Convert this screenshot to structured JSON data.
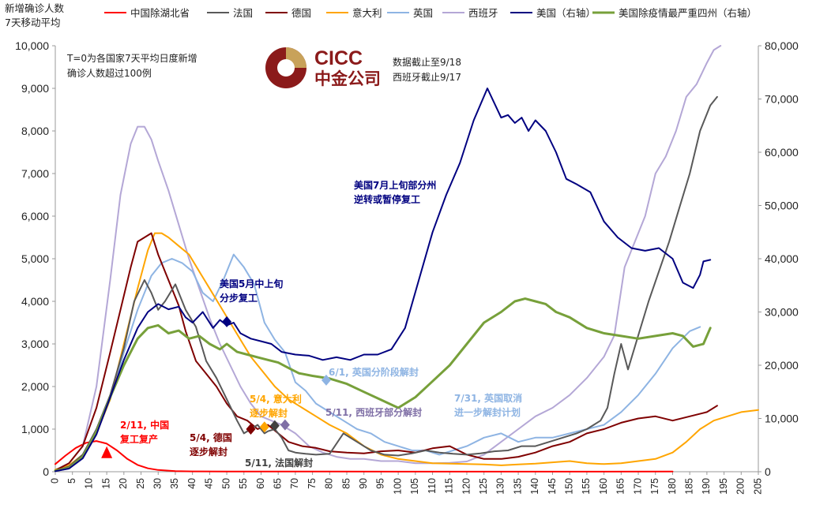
{
  "chart_data": {
    "type": "line",
    "ylabel": "新增确诊人数\n7天移动平均",
    "ylim": [
      0,
      10000
    ],
    "y2lim": [
      0,
      80000
    ],
    "xlim": [
      0,
      205
    ],
    "x_ticks": [
      0,
      5,
      10,
      15,
      20,
      25,
      30,
      35,
      40,
      45,
      50,
      55,
      60,
      65,
      70,
      75,
      80,
      85,
      90,
      95,
      100,
      105,
      110,
      115,
      120,
      125,
      130,
      135,
      140,
      145,
      150,
      155,
      160,
      165,
      170,
      175,
      180,
      185,
      190,
      195,
      200,
      205
    ],
    "y_ticks": [
      0,
      1000,
      2000,
      3000,
      4000,
      5000,
      6000,
      7000,
      8000,
      9000,
      10000
    ],
    "y_tick_labels": [
      "0",
      "1,000",
      "2,000",
      "3,000",
      "4,000",
      "5,000",
      "6,000",
      "7,000",
      "8,000",
      "9,000",
      "10,000"
    ],
    "y2_ticks": [
      0,
      10000,
      20000,
      30000,
      40000,
      50000,
      60000,
      70000,
      80000
    ],
    "y2_tick_labels": [
      "0",
      "10,000",
      "20,000",
      "30,000",
      "40,000",
      "50,000",
      "60,000",
      "70,000",
      "80,000"
    ],
    "grid": false,
    "legend_position": "top",
    "note": "T=0为各国家7天平均日度新增\n确诊人数超过100例",
    "data_note": "数据截止至9/18\n西班牙截止9/17",
    "logo": {
      "text_top": "CICC",
      "text_bottom": "中金公司",
      "brand_color": "#8b1a1a"
    },
    "series": [
      {
        "name": "中国除湖北省",
        "color": "#ff0000",
        "axis": "left",
        "width": 2,
        "x": [
          0,
          3,
          6,
          9,
          12,
          15,
          18,
          21,
          24,
          27,
          30,
          35,
          40,
          50,
          60,
          70,
          80,
          100,
          120,
          140,
          160,
          180
        ],
        "values": [
          180,
          380,
          560,
          680,
          720,
          660,
          500,
          300,
          160,
          80,
          40,
          15,
          8,
          5,
          4,
          3,
          3,
          2,
          2,
          2,
          2,
          3
        ]
      },
      {
        "name": "法国",
        "color": "#595959",
        "axis": "left",
        "width": 2,
        "x": [
          0,
          4,
          8,
          12,
          16,
          20,
          23,
          26,
          28,
          30,
          32,
          35,
          38,
          41,
          44,
          47,
          50,
          53,
          55,
          57,
          59,
          61,
          62,
          64,
          66,
          68,
          70,
          73,
          76,
          80,
          84,
          88,
          92,
          96,
          100,
          104,
          108,
          112,
          116,
          120,
          124,
          128,
          132,
          136,
          140,
          144,
          148,
          152,
          155,
          157,
          159,
          161,
          163,
          165,
          167,
          170,
          173,
          176,
          179,
          182,
          185,
          188,
          191,
          193
        ],
        "values": [
          20,
          120,
          400,
          1000,
          1800,
          2900,
          4000,
          4500,
          4200,
          3800,
          4000,
          4400,
          3800,
          3400,
          2600,
          2200,
          1700,
          1200,
          900,
          1000,
          1100,
          900,
          950,
          1000,
          800,
          500,
          450,
          420,
          400,
          420,
          900,
          700,
          500,
          400,
          380,
          430,
          500,
          450,
          420,
          400,
          430,
          480,
          500,
          600,
          600,
          700,
          800,
          900,
          1000,
          1100,
          1200,
          1500,
          2300,
          3000,
          2400,
          3200,
          4000,
          4700,
          5400,
          6200,
          7000,
          8000,
          8600,
          8800
        ]
      },
      {
        "name": "德国",
        "color": "#7f0000",
        "axis": "left",
        "width": 2,
        "x": [
          0,
          4,
          8,
          12,
          16,
          19,
          22,
          24,
          26,
          28,
          30,
          32,
          34,
          36,
          38,
          41,
          44,
          47,
          50,
          53,
          56,
          59,
          62,
          65,
          68,
          72,
          76,
          80,
          85,
          90,
          95,
          100,
          105,
          110,
          115,
          120,
          125,
          130,
          135,
          140,
          145,
          150,
          155,
          160,
          165,
          170,
          175,
          180,
          185,
          190,
          193
        ],
        "values": [
          30,
          200,
          600,
          1500,
          2800,
          3800,
          4800,
          5400,
          5500,
          5600,
          5100,
          4700,
          4300,
          3900,
          3300,
          2600,
          2300,
          2000,
          1600,
          1300,
          1200,
          1000,
          1100,
          900,
          700,
          600,
          560,
          480,
          450,
          430,
          480,
          500,
          450,
          550,
          600,
          400,
          300,
          300,
          350,
          450,
          600,
          700,
          900,
          1000,
          1150,
          1250,
          1300,
          1200,
          1300,
          1400,
          1550
        ]
      },
      {
        "name": "意大利",
        "color": "#ffa500",
        "axis": "left",
        "width": 2,
        "x": [
          0,
          4,
          8,
          12,
          16,
          20,
          24,
          27,
          29,
          31,
          33,
          36,
          39,
          42,
          45,
          48,
          51,
          54,
          57,
          60,
          64,
          68,
          72,
          76,
          80,
          85,
          90,
          95,
          100,
          105,
          110,
          115,
          120,
          125,
          130,
          135,
          140,
          145,
          150,
          155,
          160,
          165,
          170,
          175,
          180,
          184,
          188,
          192,
          196,
          200,
          205
        ],
        "values": [
          50,
          150,
          400,
          900,
          1700,
          3000,
          4300,
          5200,
          5600,
          5600,
          5500,
          5300,
          5100,
          4700,
          4300,
          3900,
          3500,
          3100,
          2700,
          2400,
          2000,
          1700,
          1500,
          1300,
          1100,
          900,
          600,
          400,
          300,
          250,
          200,
          190,
          180,
          170,
          150,
          170,
          190,
          220,
          250,
          200,
          180,
          200,
          250,
          300,
          450,
          700,
          1000,
          1200,
          1300,
          1400,
          1450
        ]
      },
      {
        "name": "英国",
        "color": "#8eb4e3",
        "axis": "left",
        "width": 2,
        "x": [
          0,
          4,
          8,
          12,
          16,
          20,
          24,
          28,
          31,
          34,
          37,
          40,
          43,
          46,
          49,
          52,
          55,
          58,
          61,
          64,
          67,
          70,
          73,
          76,
          80,
          84,
          88,
          92,
          96,
          100,
          104,
          108,
          112,
          116,
          120,
          125,
          130,
          135,
          140,
          145,
          150,
          155,
          160,
          165,
          170,
          175,
          180,
          185,
          188
        ],
        "values": [
          30,
          130,
          350,
          900,
          1700,
          2800,
          3800,
          4600,
          4900,
          5000,
          4900,
          4700,
          4200,
          4000,
          4500,
          5100,
          4800,
          4400,
          3500,
          3100,
          2800,
          2100,
          1900,
          1600,
          1400,
          1200,
          1000,
          900,
          700,
          600,
          500,
          500,
          400,
          500,
          600,
          800,
          900,
          700,
          800,
          800,
          900,
          1000,
          1100,
          1400,
          1800,
          2300,
          2900,
          3300,
          3400
        ]
      },
      {
        "name": "西班牙",
        "color": "#b4a7d6",
        "axis": "left",
        "width": 2,
        "x": [
          0,
          4,
          8,
          12,
          16,
          19,
          22,
          24,
          26,
          28,
          30,
          33,
          36,
          39,
          42,
          45,
          48,
          51,
          54,
          57,
          60,
          63,
          66,
          70,
          74,
          78,
          82,
          86,
          90,
          95,
          100,
          105,
          110,
          115,
          120,
          125,
          130,
          135,
          140,
          145,
          150,
          155,
          160,
          163,
          166,
          169,
          172,
          175,
          178,
          181,
          184,
          187,
          190,
          192,
          194
        ],
        "values": [
          40,
          200,
          600,
          2000,
          4500,
          6500,
          7700,
          8100,
          8100,
          7800,
          7300,
          6600,
          5800,
          5000,
          4300,
          3600,
          3000,
          2500,
          2000,
          1600,
          1300,
          1200,
          1100,
          900,
          600,
          450,
          350,
          300,
          300,
          250,
          250,
          200,
          200,
          210,
          240,
          400,
          700,
          1000,
          1300,
          1500,
          1800,
          2200,
          2700,
          3200,
          4800,
          5400,
          6000,
          7000,
          7400,
          8000,
          8800,
          9100,
          9600,
          9900,
          10000
        ]
      },
      {
        "name": "美国（右轴）",
        "color": "#000080",
        "axis": "right",
        "width": 2,
        "x": [
          0,
          4,
          8,
          12,
          16,
          20,
          24,
          27,
          30,
          33,
          36,
          38,
          40,
          43,
          46,
          48,
          50,
          52,
          54,
          57,
          60,
          63,
          66,
          70,
          74,
          78,
          82,
          86,
          90,
          94,
          98,
          102,
          106,
          110,
          114,
          118,
          122,
          126,
          130,
          132,
          134,
          136,
          138,
          140,
          143,
          146,
          149,
          152,
          156,
          160,
          164,
          168,
          172,
          176,
          180,
          183,
          186,
          188,
          189,
          191
        ],
        "values": [
          100,
          600,
          2500,
          7000,
          14000,
          21000,
          27000,
          30000,
          31500,
          30500,
          31000,
          29000,
          28000,
          30000,
          27000,
          28500,
          27500,
          28000,
          26000,
          25000,
          24500,
          24000,
          22500,
          22000,
          21800,
          21000,
          21500,
          21000,
          22000,
          22000,
          23000,
          27000,
          36000,
          45000,
          52000,
          58000,
          66000,
          72000,
          66500,
          67000,
          65500,
          66500,
          64000,
          66000,
          64000,
          60000,
          55000,
          54000,
          52500,
          47000,
          44000,
          42000,
          41500,
          42000,
          40000,
          35500,
          34500,
          37000,
          39500,
          39800
        ]
      },
      {
        "name": "美国除疫情最严重四州（右轴）",
        "color": "#77a03a",
        "axis": "right",
        "width": 3,
        "x": [
          0,
          4,
          8,
          12,
          16,
          20,
          24,
          27,
          30,
          33,
          36,
          39,
          42,
          45,
          48,
          50,
          53,
          56,
          59,
          62,
          65,
          68,
          71,
          75,
          80,
          85,
          90,
          95,
          100,
          105,
          110,
          115,
          120,
          125,
          130,
          134,
          137,
          140,
          143,
          146,
          150,
          155,
          160,
          165,
          170,
          175,
          180,
          183,
          186,
          189,
          191
        ],
        "values": [
          200,
          700,
          2800,
          7500,
          14000,
          20000,
          25000,
          27000,
          27500,
          26000,
          26500,
          25000,
          25500,
          24000,
          23000,
          24000,
          22500,
          22000,
          21500,
          21000,
          20500,
          19500,
          18500,
          18000,
          17500,
          16500,
          15000,
          13500,
          12000,
          14000,
          17000,
          20000,
          24000,
          28000,
          30000,
          32000,
          32500,
          32000,
          31500,
          30000,
          29000,
          27000,
          26000,
          25500,
          25000,
          25500,
          26000,
          25500,
          23500,
          24000,
          27000
        ]
      }
    ],
    "annotations": [
      {
        "lines": [
          "2/11, 中国",
          "复工复产"
        ],
        "color": "#ff0000",
        "marker": "triangle",
        "marker_x": 15,
        "marker_y": 450
      },
      {
        "lines": [
          "5/4, 德国",
          "逐步解封"
        ],
        "color": "#7f0000",
        "marker": "diamond",
        "marker_x": 57,
        "marker_y": 1000
      },
      {
        "lines": [
          "5/11, 法国解封"
        ],
        "color": "#404040",
        "marker": "diamond",
        "marker_x": 64,
        "marker_y": 1080
      },
      {
        "lines": [
          "5/4, 意大利",
          "逐步解封"
        ],
        "color": "#ffa500",
        "marker": "diamond",
        "marker_x": 61,
        "marker_y": 1050
      },
      {
        "lines": [
          "5/11, 西班牙部分解封"
        ],
        "color": "#7f6fa6",
        "marker": "diamond",
        "marker_x": 67,
        "marker_y": 1100
      },
      {
        "lines": [
          "美国5月中上旬",
          "分步复工"
        ],
        "color": "#000080",
        "marker": "diamond",
        "marker_x": 50,
        "marker_y": 3520
      },
      {
        "lines": [
          "6/1, 英国分阶段解封"
        ],
        "color": "#8eb4e3",
        "marker": "diamond",
        "marker_x": 79,
        "marker_y": 2150
      },
      {
        "lines": [
          "7/31, 英国取消",
          "进一步解封计划"
        ],
        "color": "#8eb4e3",
        "marker": "none"
      },
      {
        "lines": [
          "美国7月上旬部分州",
          "逆转或暂停复工"
        ],
        "color": "#000080",
        "marker": "none"
      }
    ]
  }
}
